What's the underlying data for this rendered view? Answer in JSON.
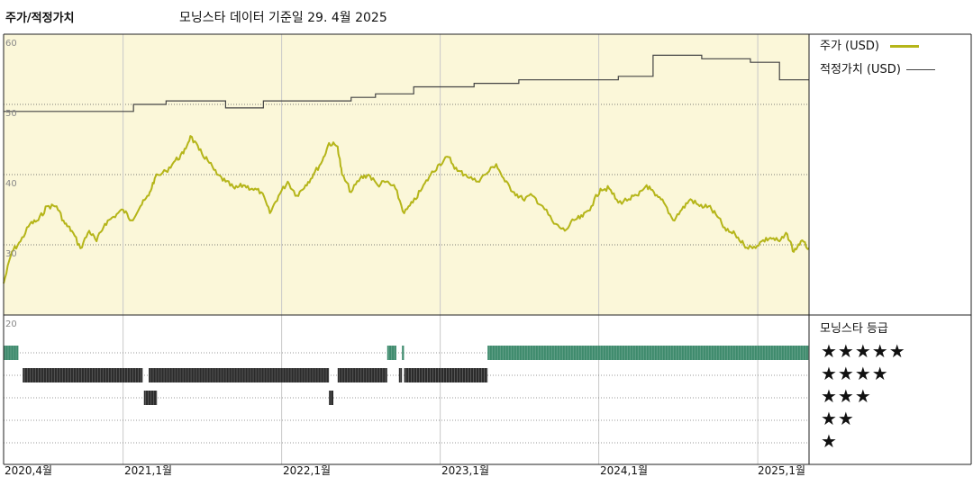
{
  "header": {
    "title": "주가/적정가치",
    "subtitle": "모닝스타 데이터 기준일 29. 4월 2025"
  },
  "legend": {
    "price_label": "주가 (USD)",
    "fair_value_label": "적정가치 (USD)"
  },
  "rating": {
    "title": "모닝스타 등급",
    "levels": [
      "★★★★★",
      "★★★★",
      "★★★",
      "★★",
      "★"
    ]
  },
  "colors": {
    "price_line": "#b5b519",
    "fair_value_line": "#444444",
    "plot_background": "#fbf7d9",
    "five_star": "#3d8a6c",
    "four_star": "#2b2b2b",
    "three_star": "#2b2b2b"
  },
  "chart_data": {
    "type": "line",
    "x_ticks": [
      "2020,4월",
      "2021,1월",
      "2022,1월",
      "2023,1월",
      "2024,1월",
      "2025,1월"
    ],
    "y_ticks": [
      60,
      50,
      40,
      30,
      20
    ],
    "ylim": [
      20,
      60
    ],
    "xlim": [
      "2020-04-01",
      "2025-04-29"
    ],
    "grid": true,
    "legend_position": "right",
    "series": [
      {
        "name": "주가 (USD)",
        "points": [
          [
            "2020-04-01",
            24.5
          ],
          [
            "2020-04-20",
            29.0
          ],
          [
            "2020-05-10",
            30.5
          ],
          [
            "2020-06-01",
            33.0
          ],
          [
            "2020-06-20",
            33.5
          ],
          [
            "2020-07-10",
            35.5
          ],
          [
            "2020-08-01",
            35.5
          ],
          [
            "2020-08-20",
            33.0
          ],
          [
            "2020-09-05",
            32.0
          ],
          [
            "2020-09-25",
            29.5
          ],
          [
            "2020-10-15",
            32.0
          ],
          [
            "2020-11-01",
            30.5
          ],
          [
            "2020-11-20",
            33.0
          ],
          [
            "2020-12-10",
            34.0
          ],
          [
            "2021-01-01",
            35.0
          ],
          [
            "2021-01-20",
            33.5
          ],
          [
            "2021-02-10",
            35.5
          ],
          [
            "2021-03-01",
            37.0
          ],
          [
            "2021-03-15",
            39.5
          ],
          [
            "2021-04-10",
            40.5
          ],
          [
            "2021-05-01",
            42.0
          ],
          [
            "2021-05-20",
            43.0
          ],
          [
            "2021-06-05",
            45.5
          ],
          [
            "2021-06-25",
            43.5
          ],
          [
            "2021-07-15",
            42.0
          ],
          [
            "2021-08-05",
            40.0
          ],
          [
            "2021-08-25",
            39.0
          ],
          [
            "2021-09-15",
            38.0
          ],
          [
            "2021-10-05",
            38.5
          ],
          [
            "2021-10-25",
            38.0
          ],
          [
            "2021-11-15",
            37.5
          ],
          [
            "2021-12-05",
            34.5
          ],
          [
            "2021-12-25",
            37.0
          ],
          [
            "2022-01-15",
            39.0
          ],
          [
            "2022-02-05",
            37.0
          ],
          [
            "2022-02-25",
            38.5
          ],
          [
            "2022-03-15",
            40.0
          ],
          [
            "2022-04-05",
            42.0
          ],
          [
            "2022-04-20",
            44.5
          ],
          [
            "2022-05-10",
            44.0
          ],
          [
            "2022-05-20",
            40.0
          ],
          [
            "2022-06-10",
            37.5
          ],
          [
            "2022-07-01",
            39.5
          ],
          [
            "2022-07-20",
            40.0
          ],
          [
            "2022-08-10",
            38.5
          ],
          [
            "2022-08-30",
            39.0
          ],
          [
            "2022-09-20",
            38.0
          ],
          [
            "2022-10-10",
            34.5
          ],
          [
            "2022-10-30",
            36.0
          ],
          [
            "2022-11-20",
            38.0
          ],
          [
            "2022-12-10",
            40.0
          ],
          [
            "2022-12-30",
            41.5
          ],
          [
            "2023-01-20",
            42.5
          ],
          [
            "2023-02-10",
            40.5
          ],
          [
            "2023-03-01",
            40.0
          ],
          [
            "2023-03-25",
            39.0
          ],
          [
            "2023-04-15",
            40.0
          ],
          [
            "2023-05-10",
            41.5
          ],
          [
            "2023-05-30",
            39.0
          ],
          [
            "2023-06-20",
            37.5
          ],
          [
            "2023-07-10",
            36.5
          ],
          [
            "2023-08-01",
            37.0
          ],
          [
            "2023-08-25",
            35.5
          ],
          [
            "2023-09-20",
            33.0
          ],
          [
            "2023-10-15",
            32.0
          ],
          [
            "2023-11-05",
            33.5
          ],
          [
            "2023-11-25",
            34.0
          ],
          [
            "2023-12-15",
            35.5
          ],
          [
            "2024-01-05",
            38.0
          ],
          [
            "2024-01-25",
            38.0
          ],
          [
            "2024-02-15",
            36.0
          ],
          [
            "2024-03-10",
            36.5
          ],
          [
            "2024-04-01",
            37.0
          ],
          [
            "2024-04-20",
            38.5
          ],
          [
            "2024-05-10",
            37.0
          ],
          [
            "2024-05-30",
            36.0
          ],
          [
            "2024-06-20",
            33.5
          ],
          [
            "2024-07-10",
            35.0
          ],
          [
            "2024-07-30",
            36.5
          ],
          [
            "2024-08-20",
            35.5
          ],
          [
            "2024-09-10",
            35.5
          ],
          [
            "2024-09-30",
            34.0
          ],
          [
            "2024-10-20",
            32.0
          ],
          [
            "2024-11-10",
            31.5
          ],
          [
            "2024-11-30",
            30.0
          ],
          [
            "2024-12-20",
            29.5
          ],
          [
            "2025-01-10",
            30.5
          ],
          [
            "2025-01-30",
            31.0
          ],
          [
            "2025-02-20",
            30.5
          ],
          [
            "2025-03-10",
            31.5
          ],
          [
            "2025-03-25",
            29.0
          ],
          [
            "2025-04-10",
            30.5
          ],
          [
            "2025-04-29",
            29.5
          ]
        ]
      },
      {
        "name": "적정가치 (USD)",
        "step": true,
        "points": [
          [
            "2020-04-01",
            49.0
          ],
          [
            "2021-01-25",
            50.0
          ],
          [
            "2021-04-10",
            50.5
          ],
          [
            "2021-08-25",
            49.5
          ],
          [
            "2021-11-20",
            50.5
          ],
          [
            "2022-06-10",
            51.0
          ],
          [
            "2022-08-05",
            51.5
          ],
          [
            "2022-11-01",
            52.5
          ],
          [
            "2023-03-20",
            53.0
          ],
          [
            "2023-07-01",
            53.5
          ],
          [
            "2024-01-01",
            53.5
          ],
          [
            "2024-02-15",
            54.0
          ],
          [
            "2024-05-05",
            57.0
          ],
          [
            "2024-08-25",
            56.5
          ],
          [
            "2024-12-15",
            56.0
          ],
          [
            "2025-02-20",
            53.5
          ],
          [
            "2025-04-29",
            53.5
          ]
        ]
      }
    ],
    "rating_history": [
      {
        "stars": 5,
        "start": "2020-04-01",
        "end": "2020-05-05"
      },
      {
        "stars": 5,
        "start": "2022-09-01",
        "end": "2022-09-22"
      },
      {
        "stars": 5,
        "start": "2022-10-05",
        "end": "2022-10-10"
      },
      {
        "stars": 5,
        "start": "2023-04-20",
        "end": "2025-04-29"
      },
      {
        "stars": 4,
        "start": "2020-05-15",
        "end": "2021-02-15"
      },
      {
        "stars": 4,
        "start": "2021-03-01",
        "end": "2022-04-20"
      },
      {
        "stars": 4,
        "start": "2022-05-10",
        "end": "2022-09-01"
      },
      {
        "stars": 4,
        "start": "2022-09-28",
        "end": "2022-10-05"
      },
      {
        "stars": 4,
        "start": "2022-10-10",
        "end": "2023-04-20"
      },
      {
        "stars": 3,
        "start": "2021-02-18",
        "end": "2021-03-20"
      },
      {
        "stars": 3,
        "start": "2022-04-20",
        "end": "2022-04-30"
      }
    ]
  }
}
